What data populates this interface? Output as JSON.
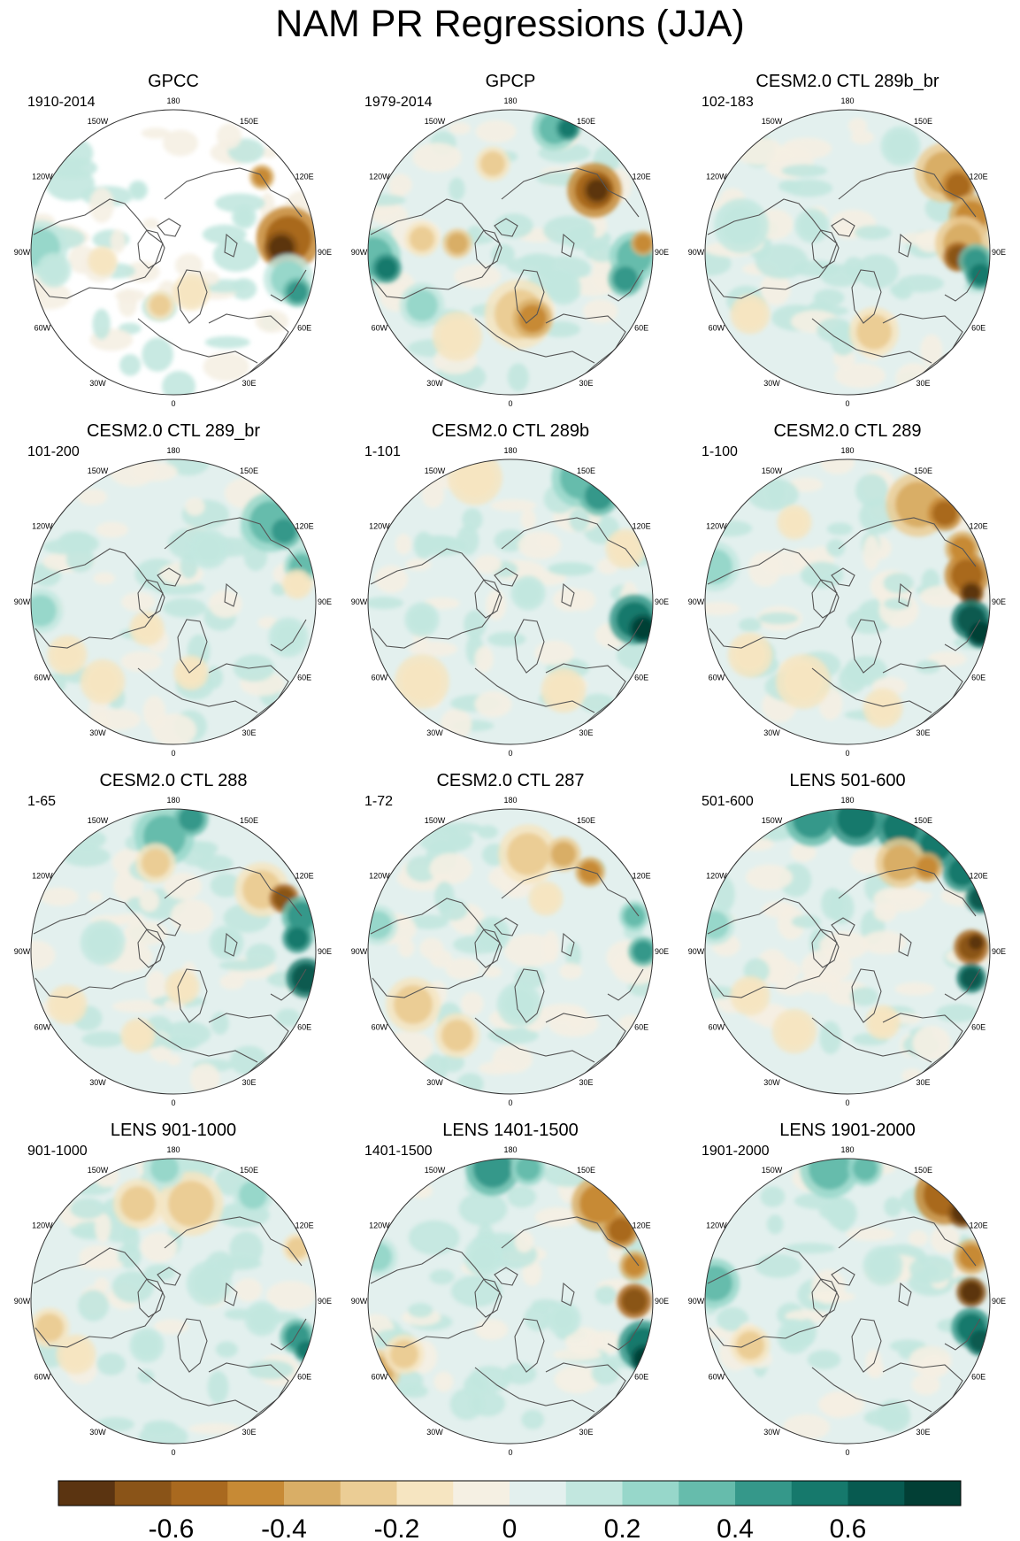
{
  "chart_data": {
    "type": "heatmap",
    "title": "NAM PR Regressions (JJA)",
    "projection": "polar-stereographic-north",
    "longitude_labels": [
      "180",
      "150E",
      "120E",
      "90E",
      "60E",
      "30E",
      "0",
      "30W",
      "60W",
      "90W",
      "120W",
      "150W"
    ],
    "colorbar": {
      "levels": 16,
      "colors": [
        "#5b3411",
        "#8a5418",
        "#a9691f",
        "#c78a35",
        "#d9ae66",
        "#ebcd95",
        "#f6e5c1",
        "#f5f0e3",
        "#e3f0ee",
        "#c2e7df",
        "#97d7ca",
        "#66bcac",
        "#35988a",
        "#16796c",
        "#075a50",
        "#023f35"
      ],
      "tick_labels": [
        "-0.6",
        "-0.4",
        "-0.2",
        "0",
        "0.2",
        "0.4",
        "0.6"
      ],
      "tick_values": [
        -0.6,
        -0.4,
        -0.2,
        0,
        0.2,
        0.4,
        0.6
      ],
      "range": [
        -0.8,
        0.8
      ]
    },
    "panels": [
      {
        "title": "GPCC",
        "years": "1910-2014",
        "ocean_masked": true
      },
      {
        "title": "GPCP",
        "years": "1979-2014"
      },
      {
        "title": "CESM2.0 CTL 289b_br",
        "years": "102-183"
      },
      {
        "title": "CESM2.0 CTL 289_br",
        "years": "101-200"
      },
      {
        "title": "CESM2.0 CTL 289b",
        "years": "1-101"
      },
      {
        "title": "CESM2.0 CTL 289",
        "years": "1-100"
      },
      {
        "title": "CESM2.0 CTL 288",
        "years": "1-65"
      },
      {
        "title": "CESM2.0 CTL 287",
        "years": "1-72"
      },
      {
        "title": "LENS 501-600",
        "years": "501-600"
      },
      {
        "title": "LENS 901-1000",
        "years": "901-1000"
      },
      {
        "title": "LENS 1401-1500",
        "years": "1401-1500"
      },
      {
        "title": "LENS 1901-2000",
        "years": "1901-2000"
      }
    ]
  }
}
